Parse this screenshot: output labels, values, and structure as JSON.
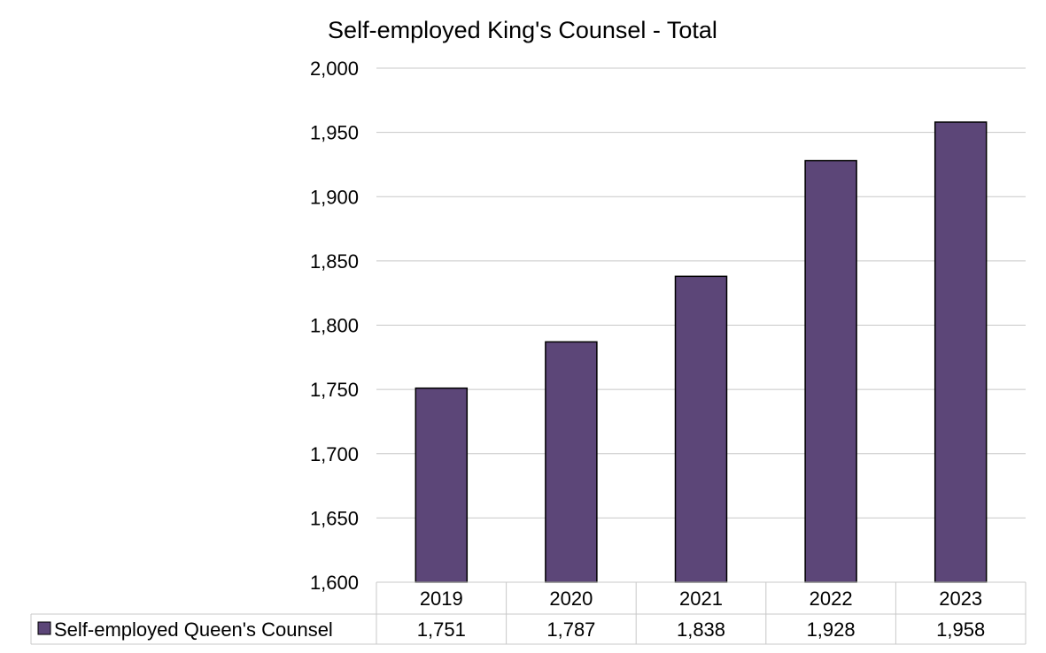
{
  "chart_data": {
    "type": "bar",
    "title": "Self-employed King's Counsel - Total",
    "categories": [
      "2019",
      "2020",
      "2021",
      "2022",
      "2023"
    ],
    "series": [
      {
        "name": "Self-employed Queen's Counsel",
        "values": [
          1751,
          1787,
          1838,
          1928,
          1958
        ],
        "labels": [
          "1,751",
          "1,787",
          "1,838",
          "1,928",
          "1,958"
        ],
        "color": "#5c4678"
      }
    ],
    "ylim": [
      1600,
      2000
    ],
    "yticks": [
      "1,600",
      "1,650",
      "1,700",
      "1,750",
      "1,800",
      "1,850",
      "1,900",
      "1,950",
      "2,000"
    ],
    "grid": true,
    "legend": "data-table"
  }
}
